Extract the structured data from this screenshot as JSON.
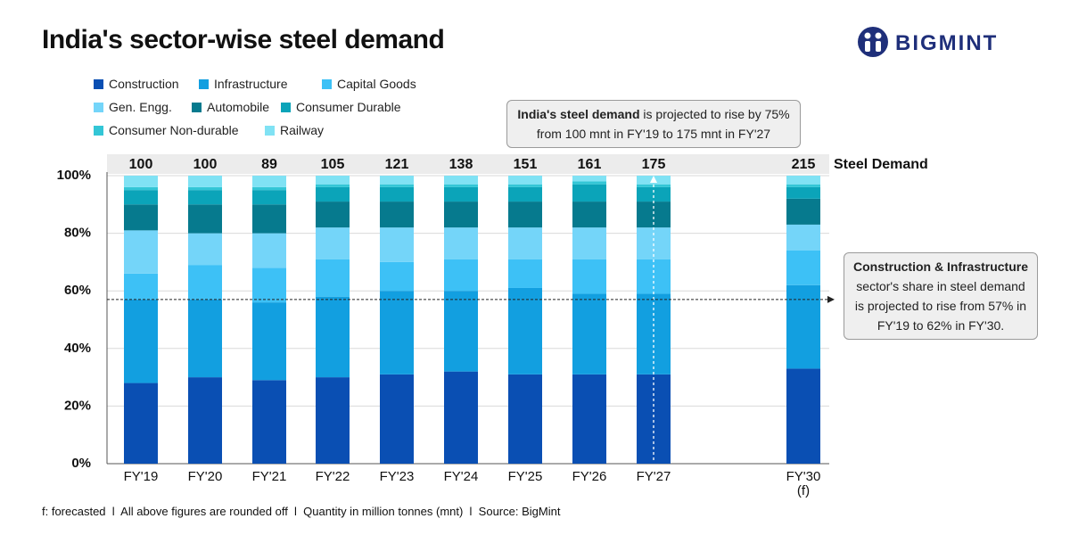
{
  "chart_data": {
    "type": "stacked_bar_percent",
    "title": "India's sector-wise steel demand",
    "logo": "BIGMINT",
    "categories": [
      "FY'19",
      "FY'20",
      "FY'21",
      "FY'22",
      "FY'23",
      "FY'24",
      "FY'25",
      "FY'26",
      "FY'27",
      "FY'30 (f)"
    ],
    "series": [
      {
        "name": "Construction",
        "color": "#0a4fb3",
        "values": [
          28,
          30,
          29,
          30,
          31,
          32,
          31,
          31,
          31,
          33
        ]
      },
      {
        "name": "Infrastructure",
        "color": "#129fe0",
        "values": [
          29,
          27,
          27,
          28,
          29,
          28,
          30,
          28,
          28,
          29
        ]
      },
      {
        "name": "Capital Goods",
        "color": "#3dc1f6",
        "values": [
          9,
          12,
          12,
          13,
          10,
          11,
          10,
          12,
          12,
          12
        ]
      },
      {
        "name": "Gen. Engg.",
        "color": "#74d5f9",
        "values": [
          15,
          11,
          12,
          11,
          12,
          11,
          11,
          11,
          11,
          9
        ]
      },
      {
        "name": "Automobile",
        "color": "#067a8e",
        "values": [
          9,
          10,
          10,
          9,
          9,
          9,
          9,
          9,
          9,
          9
        ]
      },
      {
        "name": "Consumer Durable",
        "color": "#0ba4b9",
        "values": [
          5,
          5,
          5,
          5,
          5,
          5,
          5,
          6,
          5,
          4
        ]
      },
      {
        "name": "Consumer Non-durable",
        "color": "#33c6d6",
        "values": [
          1,
          1,
          1,
          1,
          1,
          1,
          1,
          1,
          1,
          1
        ]
      },
      {
        "name": "Railway",
        "color": "#80e2f4",
        "values": [
          4,
          4,
          4,
          3,
          3,
          3,
          3,
          2,
          3,
          3
        ]
      }
    ],
    "totals": {
      "name": "Steel Demand",
      "values": [
        100,
        100,
        89,
        105,
        121,
        138,
        151,
        161,
        175,
        215
      ]
    },
    "ylim": [
      0,
      100
    ],
    "yticks": [
      {
        "value": 0,
        "label": "0%"
      },
      {
        "value": 20,
        "label": "20%"
      },
      {
        "value": 40,
        "label": "40%"
      },
      {
        "value": 60,
        "label": "60%"
      },
      {
        "value": 80,
        "label": "80%"
      },
      {
        "value": 100,
        "label": "100%"
      }
    ],
    "reference_line": 57,
    "annotations": [
      {
        "bold": "India's steel demand",
        "text": " is projected to rise by 75% from 100 mnt in FY'19 to 175 mnt in FY'27"
      },
      {
        "bold": "Construction & Infrastructure",
        "text": "sector's share in steel demand is projected to rise from 57% in FY'19 to 62% in FY'30."
      }
    ],
    "footnote": "f: forecasted  l  All above figures are rounded off  l  Quantity in million tonnes (mnt)  l  Source: BigMint"
  }
}
